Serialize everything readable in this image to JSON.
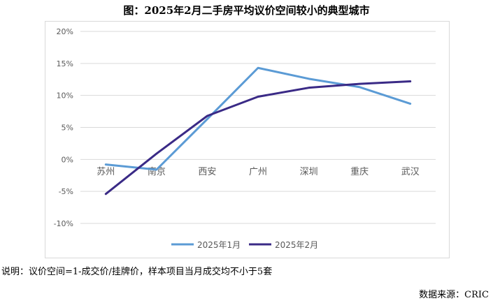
{
  "page": {
    "title": "图：2025年2月二手房平均议价空间较小的典型城市",
    "footnote": "说明：议价空间=1-成交价/挂牌价，样本项目当月成交均不小于5套",
    "source": "数据来源：CRIC"
  },
  "chart_data": {
    "type": "line",
    "title": "图：2025年2月二手房平均议价空间较小的典型城市",
    "categories": [
      "苏州",
      "南京",
      "西安",
      "广州",
      "深圳",
      "重庆",
      "武汉"
    ],
    "yticks": [
      "20%",
      "15%",
      "10%",
      "5%",
      "0%",
      "-5%",
      "-10%"
    ],
    "ylim": [
      -10,
      20
    ],
    "grid": true,
    "legend_position": "bottom",
    "series": [
      {
        "name": "2025年1月",
        "color": "#5b9bd5",
        "values": [
          -0.8,
          -1.6,
          6.3,
          14.3,
          12.6,
          11.3,
          8.7
        ]
      },
      {
        "name": "2025年2月",
        "color": "#3a2a86",
        "values": [
          -5.4,
          0.9,
          6.8,
          9.8,
          11.2,
          11.8,
          12.2
        ]
      }
    ]
  }
}
